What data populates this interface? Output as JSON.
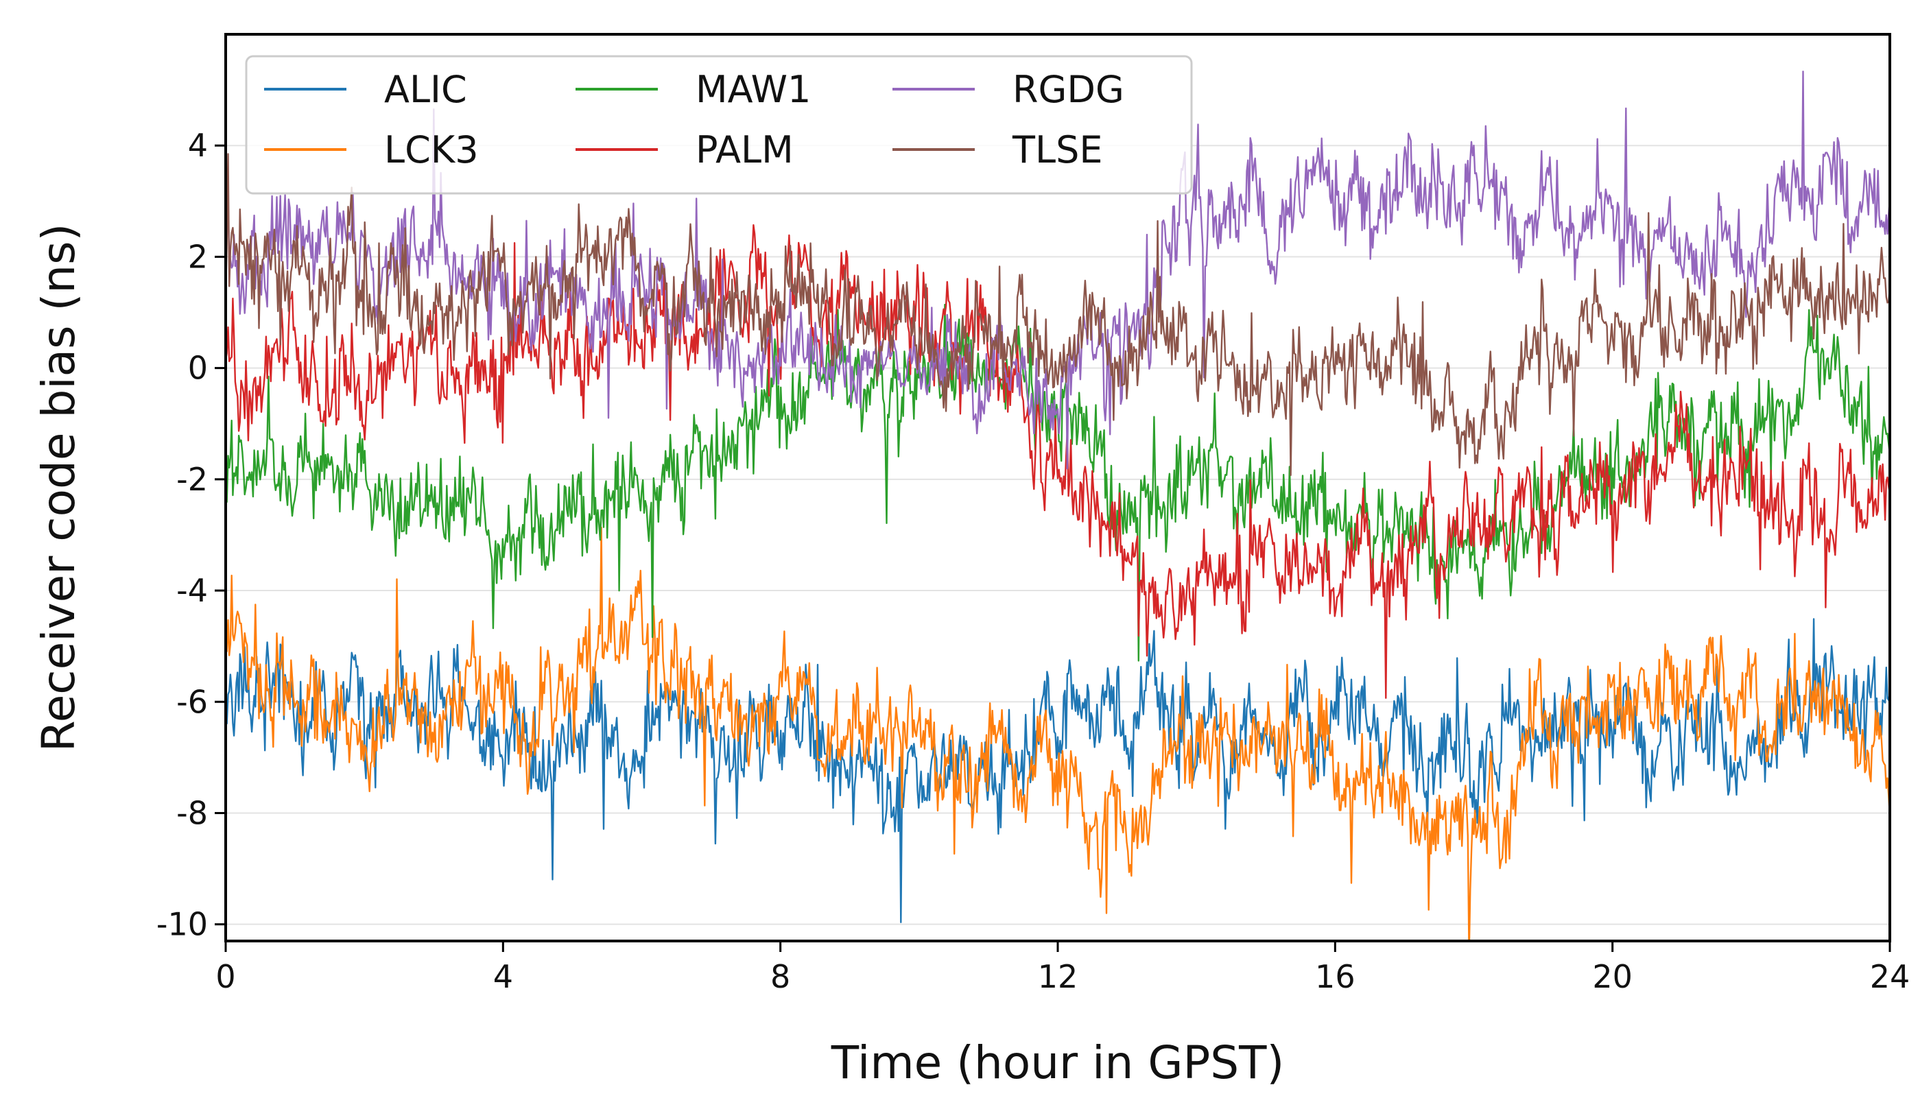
{
  "chart_data": {
    "type": "line",
    "title": "",
    "xlabel": "Time (hour in GPST)",
    "ylabel": "Receiver code bias (ns)",
    "xlim": [
      0,
      24
    ],
    "ylim": [
      -10.3,
      6.0
    ],
    "xticks": [
      0,
      4,
      8,
      12,
      16,
      20,
      24
    ],
    "xtick_labels": [
      "0",
      "4",
      "8",
      "12",
      "16",
      "20",
      "24"
    ],
    "yticks": [
      -10,
      -8,
      -6,
      -4,
      -2,
      0,
      2,
      4
    ],
    "ytick_labels": [
      "-10",
      "-8",
      "-6",
      "-4",
      "-2",
      "0",
      "2",
      "4"
    ],
    "grid": "horizontal",
    "legend": {
      "placement": "top-left",
      "columns": 3
    },
    "series": [
      {
        "name": "ALIC",
        "color": "#1f77b4",
        "x": [
          0,
          1,
          2,
          3,
          4,
          5,
          6,
          7,
          8,
          9,
          10,
          11,
          12,
          13,
          14,
          15,
          16,
          17,
          18,
          19,
          20,
          21,
          22,
          23,
          24
        ],
        "values": [
          -6.0,
          -5.8,
          -6.3,
          -6.0,
          -6.5,
          -6.8,
          -6.4,
          -6.6,
          -6.7,
          -7.0,
          -7.2,
          -7.5,
          -6.2,
          -5.8,
          -6.6,
          -6.8,
          -6.2,
          -6.7,
          -7.2,
          -6.5,
          -6.4,
          -6.6,
          -6.8,
          -6.2,
          -5.6
        ]
      },
      {
        "name": "LCK3",
        "color": "#ff7f0e",
        "x": [
          0,
          1,
          2,
          3,
          4,
          5,
          6,
          7,
          8,
          9,
          10,
          11,
          12,
          13,
          14,
          15,
          16,
          17,
          18,
          19,
          20,
          21,
          22,
          23,
          24
        ],
        "values": [
          -4.8,
          -6.0,
          -6.3,
          -6.2,
          -6.0,
          -5.5,
          -4.7,
          -5.6,
          -6.1,
          -6.4,
          -7.0,
          -7.2,
          -7.6,
          -8.4,
          -6.4,
          -6.8,
          -6.9,
          -7.5,
          -8.6,
          -6.6,
          -6.2,
          -6.0,
          -6.3,
          -6.0,
          -6.8
        ]
      },
      {
        "name": "MAW1",
        "color": "#2ca02c",
        "x": [
          0,
          1,
          2,
          3,
          4,
          5,
          6,
          7,
          7.5,
          8,
          9,
          10,
          11,
          12,
          13,
          14,
          15,
          16,
          17,
          18,
          19,
          20,
          21,
          22,
          23,
          24
        ],
        "values": [
          -1.8,
          -1.9,
          -2.3,
          -2.8,
          -2.6,
          -2.7,
          -2.3,
          -1.6,
          -1.4,
          -0.6,
          -0.1,
          0.0,
          0.2,
          -0.6,
          -2.8,
          -1.9,
          -2.1,
          -2.7,
          -3.2,
          -3.3,
          -2.6,
          -1.6,
          -0.7,
          -1.1,
          -0.4,
          -1.0
        ]
      },
      {
        "name": "PALM",
        "color": "#d62728",
        "x": [
          0,
          1,
          2,
          3,
          4,
          5,
          6,
          7,
          8,
          9,
          10,
          11,
          12,
          13,
          14,
          15,
          16,
          17,
          18,
          19,
          20,
          21,
          22,
          23,
          24
        ],
        "values": [
          0.0,
          0.1,
          -0.3,
          0.2,
          0.4,
          0.1,
          0.6,
          0.9,
          1.0,
          1.1,
          0.8,
          0.3,
          -2.0,
          -3.5,
          -4.0,
          -3.8,
          -3.6,
          -3.2,
          -2.8,
          -2.6,
          -2.1,
          -1.6,
          -2.1,
          -2.4,
          -2.2
        ]
      },
      {
        "name": "RGDG",
        "color": "#9467bd",
        "x": [
          0,
          1,
          2,
          3,
          4,
          5,
          6,
          7,
          8,
          9,
          10,
          11,
          12,
          13,
          13.5,
          14,
          15,
          16,
          17,
          18,
          19,
          20,
          21,
          22,
          23,
          24
        ],
        "values": [
          2.3,
          2.5,
          2.1,
          2.3,
          1.4,
          1.1,
          1.2,
          0.6,
          0.3,
          0.5,
          0.3,
          0.1,
          -0.4,
          0.6,
          2.0,
          3.1,
          2.5,
          2.9,
          3.0,
          2.9,
          2.5,
          2.0,
          1.9,
          2.2,
          3.8,
          2.9
        ]
      },
      {
        "name": "TLSE",
        "color": "#8c564b",
        "x": [
          0,
          1,
          2,
          3,
          4,
          5,
          6,
          7,
          8,
          9,
          10,
          11,
          12,
          13,
          14,
          15,
          16,
          17,
          18,
          19,
          20,
          21,
          22,
          23,
          24
        ],
        "values": [
          1.9,
          1.8,
          1.3,
          1.2,
          1.2,
          1.6,
          2.0,
          1.3,
          1.1,
          0.9,
          0.8,
          0.6,
          0.3,
          0.2,
          0.0,
          0.0,
          0.4,
          -0.1,
          -0.9,
          0.4,
          1.2,
          0.7,
          1.1,
          1.6,
          1.3
        ]
      }
    ]
  }
}
